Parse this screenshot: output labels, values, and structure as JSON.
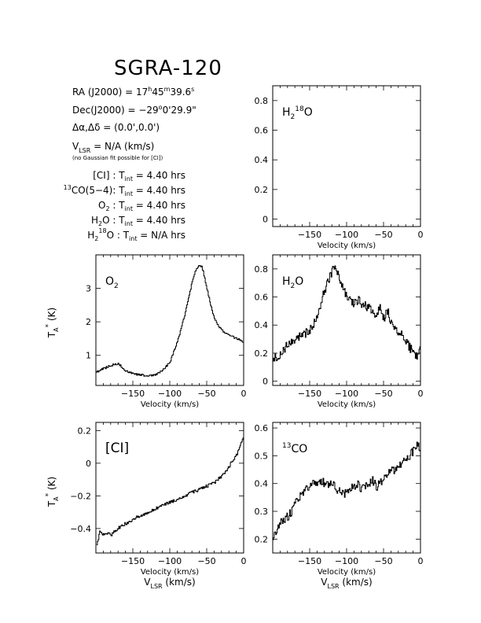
{
  "header": {
    "title": "SGRA-120",
    "ra_prefix": "RA (J2000) =  17",
    "ra_h": "h",
    "ra_m_val": "45",
    "ra_m": "m",
    "ra_s_val": "39.6",
    "ra_s": "s",
    "dec_prefix": "Dec(J2000) =  −29",
    "dec_deg": "o",
    "dec_rest": "0'29.9\"",
    "offset_line": "Δα,Δδ =  (0.0',0.0')",
    "vlsr_v": "V",
    "vlsr_sub": "LSR",
    "vlsr_rest": "  = N/A  (km/s)",
    "note": "(no Gaussian fit possible for [CI])",
    "tint": [
      {
        "species": "[CI]",
        "sup": "",
        "rest": " : T",
        "sub2": "int",
        "value": " = 4.40 hrs"
      },
      {
        "species": "CO(5−4)",
        "sup": "13",
        "rest": ": T",
        "sub2": "int",
        "value": " = 4.40 hrs"
      },
      {
        "species": "O",
        "sub": "2",
        "rest": " : T",
        "sub2": "int",
        "value": " = 4.40 hrs"
      },
      {
        "species": "H",
        "sub": "2",
        "rest": "O : T",
        "sub2": "int",
        "value": " = 4.40 hrs"
      },
      {
        "species": "H",
        "sub": "2",
        "sup": "18",
        "rest": "O : T",
        "sub2": "int",
        "value": " = N/A  hrs"
      }
    ]
  },
  "ylabel_ta": {
    "t": "T",
    "sub": "A",
    "sup": "*",
    "unit": " (K)"
  },
  "xlabel_velocity": "Velocity (km/s)",
  "xlabel_vlsr": {
    "v": "V",
    "sub": "LSR",
    "unit": " (km/s)"
  },
  "chart_data": [
    {
      "id": "h218o",
      "type": "line",
      "label": {
        "pre": "H",
        "sub": "2",
        "sup": "18",
        "post": "O"
      },
      "xlabel": "Velocity (km/s)",
      "xlim": [
        -200,
        0
      ],
      "ylim": [
        -0.05,
        0.9
      ],
      "xticks": [
        -150,
        -100,
        -50,
        0
      ],
      "yticks": [
        0,
        0.2,
        0.4,
        0.6,
        0.8
      ],
      "ytick_labels": [
        "0",
        "0.2",
        "0.4",
        "0.6",
        "0.8"
      ],
      "series": [
        {
          "x": [],
          "y": []
        }
      ]
    },
    {
      "id": "o2",
      "type": "line",
      "label": {
        "pre": "O",
        "sub": "2",
        "sup": "",
        "post": ""
      },
      "xlabel": "Velocity (km/s)",
      "xlim": [
        -200,
        0
      ],
      "ylim": [
        0.1,
        4.0
      ],
      "xticks": [
        -150,
        -100,
        -50,
        0
      ],
      "yticks": [
        1,
        2,
        3
      ],
      "ytick_labels": [
        "1",
        "2",
        "3"
      ],
      "series": [
        {
          "x": [
            -200,
            -190,
            -180,
            -170,
            -160,
            -150,
            -140,
            -130,
            -120,
            -110,
            -100,
            -95,
            -90,
            -85,
            -80,
            -75,
            -70,
            -65,
            -60,
            -57,
            -55,
            -50,
            -45,
            -40,
            -35,
            -30,
            -25,
            -20,
            -15,
            -10,
            -5,
            0
          ],
          "y": [
            0.5,
            0.6,
            0.7,
            0.75,
            0.55,
            0.45,
            0.42,
            0.38,
            0.42,
            0.55,
            0.8,
            1.1,
            1.4,
            1.8,
            2.2,
            2.7,
            3.2,
            3.55,
            3.7,
            3.65,
            3.5,
            3.0,
            2.5,
            2.1,
            1.9,
            1.75,
            1.65,
            1.6,
            1.55,
            1.5,
            1.45,
            1.4
          ]
        }
      ]
    },
    {
      "id": "h2o",
      "type": "line",
      "label": {
        "pre": "H",
        "sub": "2",
        "sup": "",
        "post": "O"
      },
      "xlabel": "Velocity (km/s)",
      "xlim": [
        -200,
        0
      ],
      "ylim": [
        -0.03,
        0.9
      ],
      "xticks": [
        -150,
        -100,
        -50,
        0
      ],
      "yticks": [
        0,
        0.2,
        0.4,
        0.6,
        0.8
      ],
      "ytick_labels": [
        "0",
        "0.2",
        "0.4",
        "0.6",
        "0.8"
      ],
      "series": [
        {
          "x": [
            -200,
            -190,
            -180,
            -170,
            -160,
            -150,
            -145,
            -140,
            -135,
            -130,
            -125,
            -120,
            -115,
            -110,
            -105,
            -100,
            -95,
            -90,
            -85,
            -80,
            -75,
            -70,
            -65,
            -60,
            -55,
            -50,
            -45,
            -40,
            -35,
            -30,
            -25,
            -20,
            -15,
            -10,
            -5,
            0
          ],
          "y": [
            0.15,
            0.2,
            0.26,
            0.3,
            0.33,
            0.36,
            0.4,
            0.45,
            0.55,
            0.65,
            0.72,
            0.78,
            0.82,
            0.75,
            0.65,
            0.6,
            0.57,
            0.56,
            0.58,
            0.55,
            0.54,
            0.52,
            0.5,
            0.48,
            0.52,
            0.45,
            0.5,
            0.42,
            0.38,
            0.32,
            0.35,
            0.28,
            0.24,
            0.2,
            0.18,
            0.25
          ]
        }
      ]
    },
    {
      "id": "ci",
      "type": "line",
      "label": {
        "pre": "[CI]",
        "sub": "",
        "sup": "",
        "post": ""
      },
      "xlabel": "Velocity (km/s)",
      "xlim": [
        -200,
        0
      ],
      "ylim": [
        -0.55,
        0.25
      ],
      "xticks": [
        -150,
        -100,
        -50,
        0
      ],
      "yticks": [
        -0.4,
        -0.2,
        0,
        0.2
      ],
      "ytick_labels": [
        "−0.4",
        "−0.2",
        "0",
        "0.2"
      ],
      "series": [
        {
          "x": [
            -199,
            -195,
            -190,
            -185,
            -180,
            -175,
            -170,
            -165,
            -160,
            -155,
            -150,
            -145,
            -140,
            -135,
            -130,
            -125,
            -120,
            -115,
            -110,
            -105,
            -100,
            -95,
            -90,
            -85,
            -80,
            -75,
            -70,
            -65,
            -60,
            -55,
            -50,
            -45,
            -40,
            -35,
            -30,
            -25,
            -20,
            -15,
            -10,
            -5,
            0
          ],
          "y": [
            -0.5,
            -0.42,
            -0.44,
            -0.43,
            -0.44,
            -0.42,
            -0.4,
            -0.38,
            -0.37,
            -0.36,
            -0.34,
            -0.33,
            -0.32,
            -0.31,
            -0.3,
            -0.29,
            -0.28,
            -0.27,
            -0.26,
            -0.25,
            -0.24,
            -0.23,
            -0.22,
            -0.21,
            -0.2,
            -0.19,
            -0.18,
            -0.17,
            -0.16,
            -0.15,
            -0.14,
            -0.13,
            -0.12,
            -0.1,
            -0.08,
            -0.05,
            -0.02,
            0.02,
            0.05,
            0.1,
            0.18
          ]
        }
      ]
    },
    {
      "id": "13co",
      "type": "line",
      "label": {
        "pre": "",
        "sub": "",
        "sup": "13",
        "post": "CO"
      },
      "xlabel": "Velocity (km/s)",
      "xlim": [
        -200,
        0
      ],
      "ylim": [
        0.15,
        0.62
      ],
      "xticks": [
        -150,
        -100,
        -50,
        0
      ],
      "yticks": [
        0.2,
        0.3,
        0.4,
        0.5,
        0.6
      ],
      "ytick_labels": [
        "0.2",
        "0.3",
        "0.4",
        "0.5",
        "0.6"
      ],
      "series": [
        {
          "x": [
            -200,
            -195,
            -190,
            -185,
            -180,
            -175,
            -170,
            -165,
            -160,
            -155,
            -150,
            -145,
            -140,
            -135,
            -130,
            -125,
            -120,
            -115,
            -110,
            -105,
            -100,
            -95,
            -90,
            -85,
            -80,
            -75,
            -70,
            -65,
            -60,
            -55,
            -50,
            -45,
            -40,
            -35,
            -30,
            -25,
            -20,
            -15,
            -10,
            -5,
            0
          ],
          "y": [
            0.2,
            0.23,
            0.26,
            0.27,
            0.28,
            0.3,
            0.33,
            0.35,
            0.37,
            0.38,
            0.39,
            0.4,
            0.4,
            0.41,
            0.4,
            0.39,
            0.4,
            0.38,
            0.37,
            0.36,
            0.37,
            0.38,
            0.39,
            0.4,
            0.38,
            0.39,
            0.4,
            0.41,
            0.39,
            0.4,
            0.42,
            0.44,
            0.45,
            0.44,
            0.46,
            0.47,
            0.49,
            0.5,
            0.52,
            0.54,
            0.52
          ]
        }
      ]
    }
  ]
}
